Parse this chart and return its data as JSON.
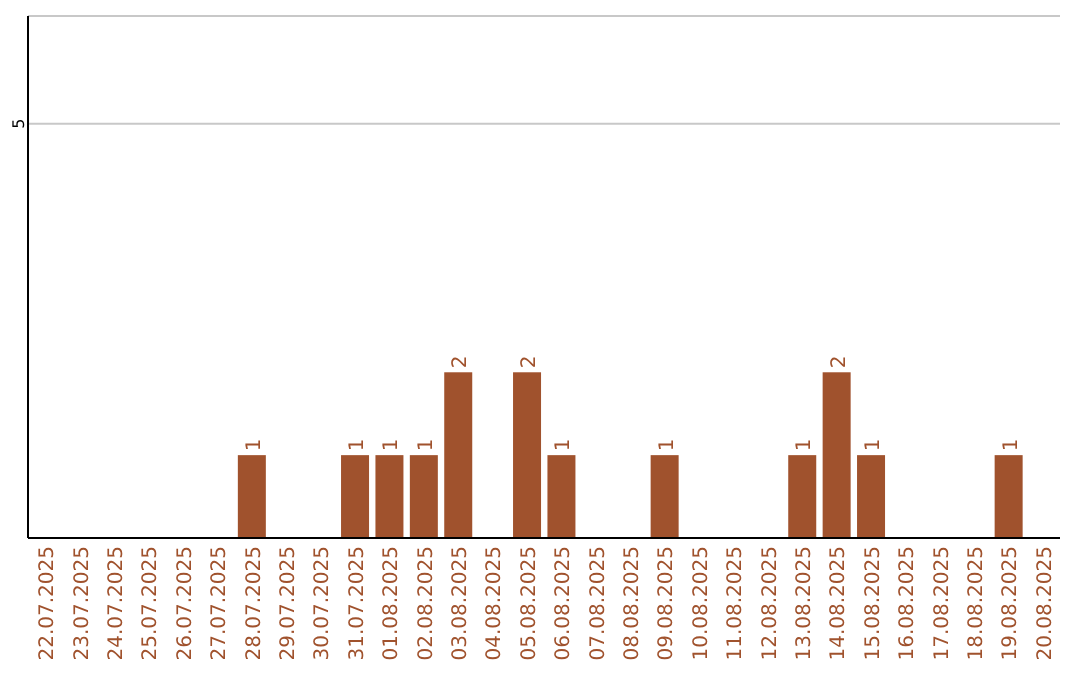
{
  "chart_data": {
    "type": "bar",
    "categories": [
      "22.07.2025",
      "23.07.2025",
      "24.07.2025",
      "25.07.2025",
      "26.07.2025",
      "27.07.2025",
      "28.07.2025",
      "29.07.2025",
      "30.07.2025",
      "31.07.2025",
      "01.08.2025",
      "02.08.2025",
      "03.08.2025",
      "04.08.2025",
      "05.08.2025",
      "06.08.2025",
      "07.08.2025",
      "08.08.2025",
      "09.08.2025",
      "10.08.2025",
      "11.08.2025",
      "12.08.2025",
      "13.08.2025",
      "14.08.2025",
      "15.08.2025",
      "16.08.2025",
      "17.08.2025",
      "18.08.2025",
      "19.08.2025",
      "20.08.2025"
    ],
    "values": [
      0,
      0,
      0,
      0,
      0,
      0,
      1,
      0,
      0,
      1,
      1,
      1,
      2,
      0,
      2,
      1,
      0,
      0,
      1,
      0,
      0,
      0,
      1,
      2,
      1,
      0,
      0,
      0,
      1,
      0
    ],
    "value_labels": [
      null,
      null,
      null,
      null,
      null,
      null,
      "1",
      null,
      null,
      "1",
      "1",
      "1",
      "2",
      null,
      "2",
      "1",
      null,
      null,
      "1",
      null,
      null,
      null,
      "1",
      "2",
      "1",
      null,
      null,
      null,
      "1",
      null
    ],
    "color": "#a0522d",
    "ylim": [
      0,
      6.3
    ],
    "yticks": [
      5
    ],
    "grid": "y"
  }
}
